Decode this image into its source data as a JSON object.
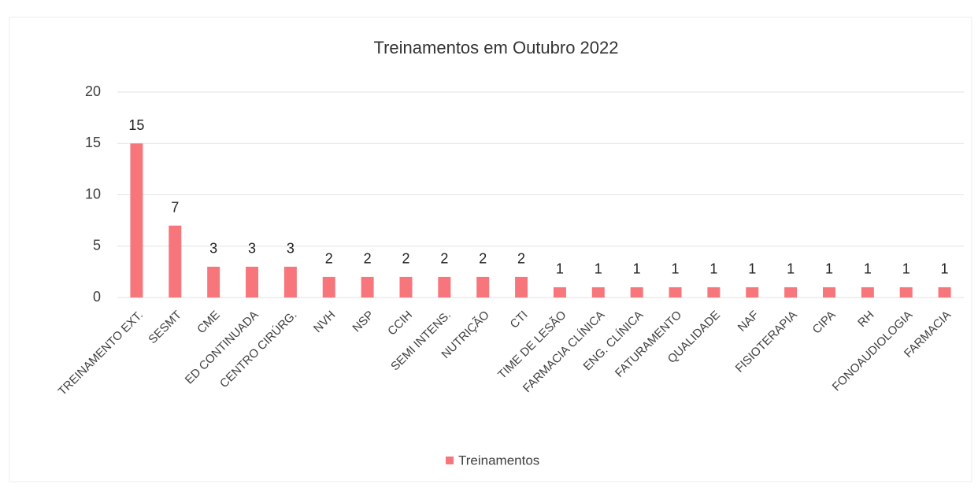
{
  "chart_data": {
    "type": "bar",
    "title": "Treinamentos em Outubro 2022",
    "categories": [
      "TREINAMENTO EXT.",
      "SESMT",
      "CME",
      "ED CONTINUADA",
      "CENTRO CIRÚRG.",
      "NVH",
      "NSP",
      "CCIH",
      "SEMI INTENS.",
      "NUTRIÇÃO",
      "CTI",
      "TIME DE LESÃO",
      "FARMACIA CLÍNICA",
      "ENG. CLÍNICA",
      "FATURAMENTO",
      "QUALIDADE",
      "NAF",
      "FISIOTERAPIA",
      "CIPA",
      "RH",
      "FONOAUDIOLOGIA",
      "FARMACIA"
    ],
    "series": [
      {
        "name": "Treinamentos",
        "color": "#f7767b",
        "values": [
          15,
          7,
          3,
          3,
          3,
          2,
          2,
          2,
          2,
          2,
          2,
          1,
          1,
          1,
          1,
          1,
          1,
          1,
          1,
          1,
          1,
          1
        ]
      }
    ],
    "ylim": [
      0,
      20
    ],
    "yticks": [
      0,
      5,
      10,
      15,
      20
    ],
    "grid": true,
    "legend": "bottom"
  }
}
